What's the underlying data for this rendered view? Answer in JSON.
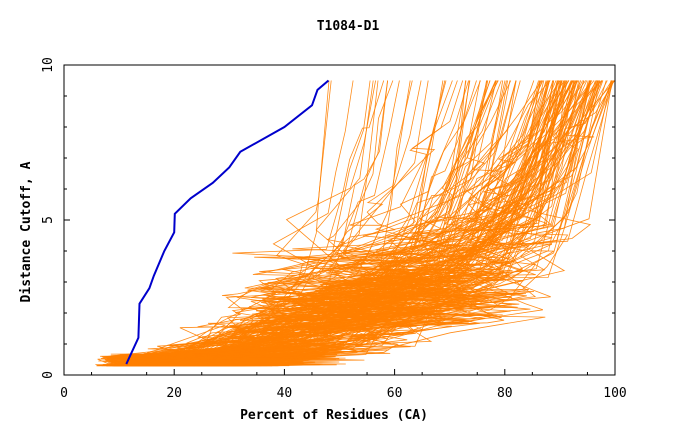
{
  "chart_data": {
    "type": "line",
    "title": "T1084-D1",
    "xlabel": "Percent of Residues (CA)",
    "ylabel": "Distance Cutoff, A",
    "xlim": [
      0,
      100
    ],
    "ylim": [
      0,
      10
    ],
    "x_ticks": [
      0,
      20,
      40,
      60,
      80,
      100
    ],
    "y_ticks": [
      0,
      5,
      10
    ],
    "grid": false,
    "legend": "none",
    "colors": {
      "highlight": "#0000cc",
      "others": "#ff8000",
      "axes": "#000000"
    },
    "highlight_series": {
      "x": [
        11.3,
        13.5,
        13.7,
        15.5,
        16.3,
        18.2,
        20.0,
        20.1,
        23.0,
        27.0,
        30.0,
        32.0,
        40.0,
        45.0,
        46.0,
        48.0
      ],
      "y": [
        0.35,
        1.2,
        2.3,
        2.8,
        3.2,
        4.0,
        4.6,
        5.2,
        5.7,
        6.2,
        6.7,
        7.2,
        8.0,
        8.7,
        9.2,
        9.5
      ]
    },
    "others_summary": {
      "count": 160,
      "x_min_range": [
        6,
        16
      ],
      "x_max_range": [
        48,
        100
      ],
      "y_max": 9.5,
      "y_min": 0.3
    }
  }
}
